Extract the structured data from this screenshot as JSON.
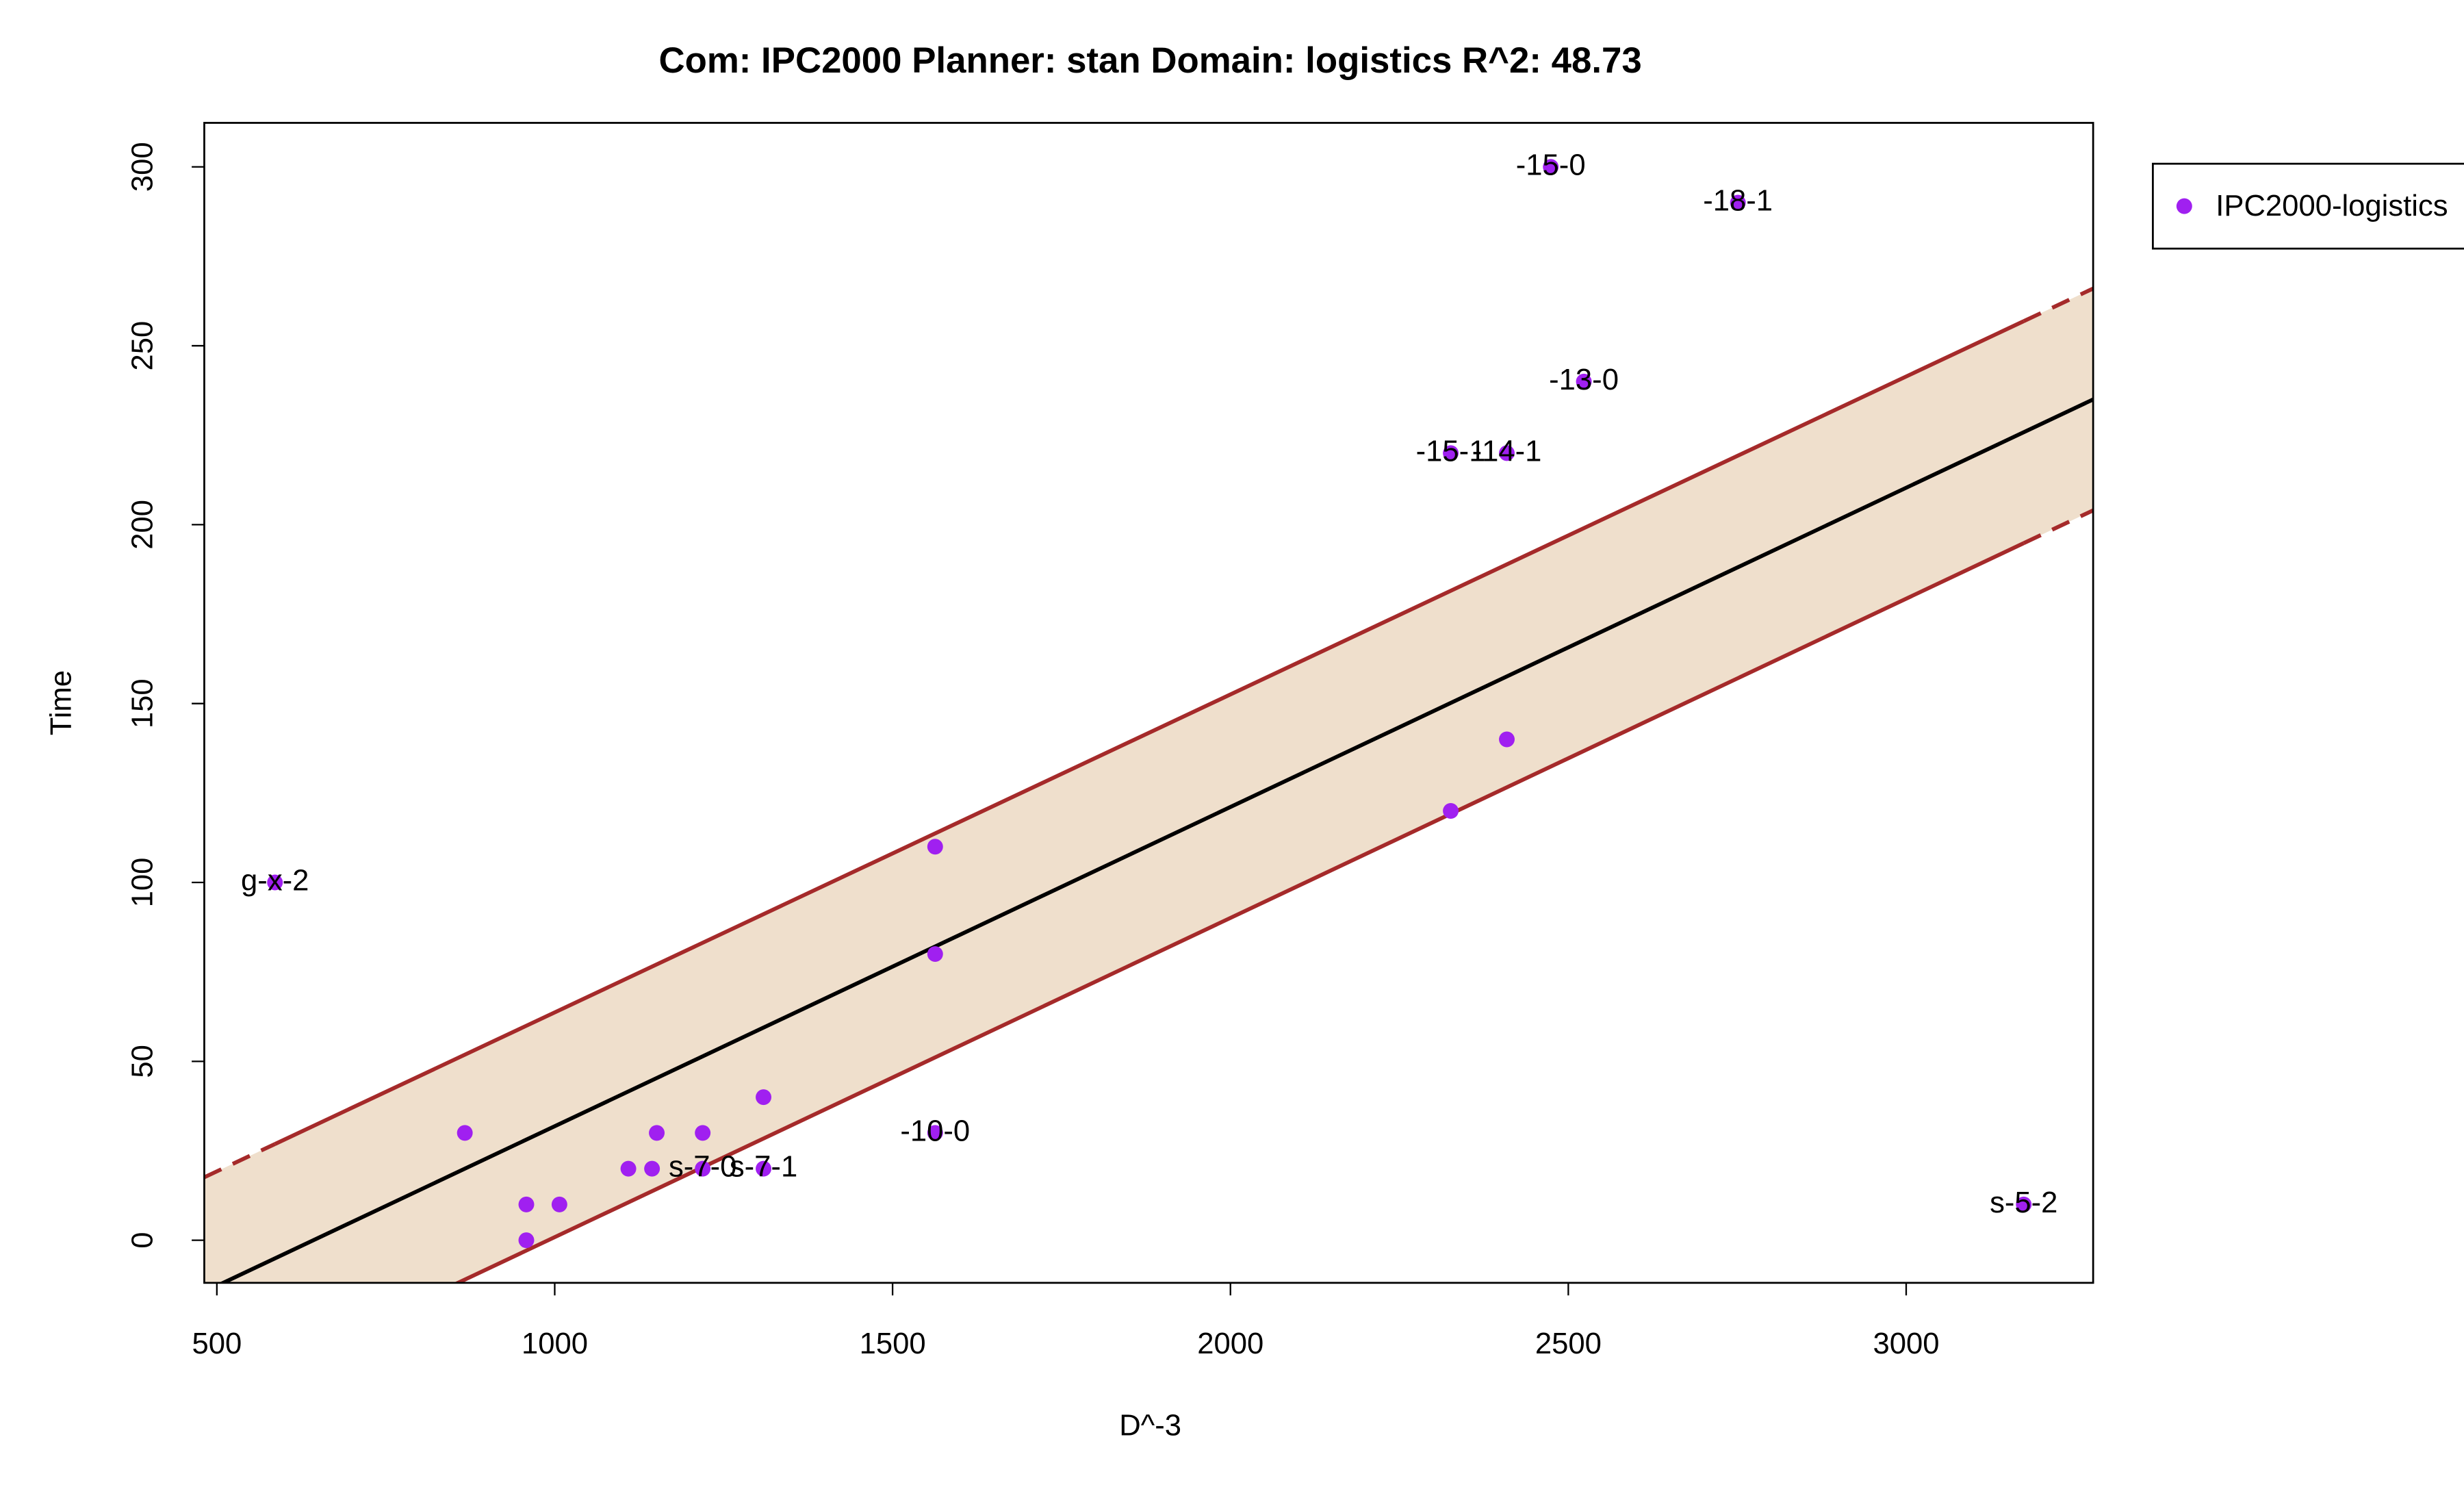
{
  "chart_data": {
    "type": "scatter",
    "title": "Com: IPC2000 Planner: stan Domain: logistics R^2: 48.73",
    "xlabel": "D^-3",
    "ylabel": "Time",
    "xlim": [
      481.4,
      3276.7
    ],
    "ylim": [
      -11.9,
      312.3
    ],
    "xticks": [
      500,
      1000,
      1500,
      2000,
      2500,
      3000
    ],
    "yticks": [
      0,
      50,
      100,
      150,
      200,
      250,
      300
    ],
    "series": [
      {
        "name": "IPC2000-logistics",
        "color": "#a020f0",
        "x": [
          586,
          867,
          958,
          958,
          1007,
          1109,
          1144,
          1151,
          1219,
          1219,
          1309,
          1309,
          1563,
          1563,
          1563,
          2326,
          2326,
          2409,
          2409,
          2474,
          2523,
          2751,
          3174
        ],
        "values": [
          100,
          30,
          10,
          0,
          10,
          20,
          20,
          30,
          30,
          20,
          40,
          20,
          110,
          80,
          30,
          120,
          220,
          140,
          220,
          300,
          240,
          290,
          10
        ],
        "labels": [
          "g-x-2",
          null,
          null,
          null,
          null,
          null,
          null,
          null,
          null,
          "s-7-0",
          null,
          "s-7-1",
          null,
          null,
          "-10-0",
          null,
          "-15-1",
          null,
          "-14-1",
          "-15-0",
          "-13-0",
          "-18-1",
          "s-5-2"
        ]
      }
    ],
    "fit": {
      "color": "#000000",
      "band_line_color": "#a52a2a",
      "band_color": "#efdfcc",
      "x": [
        481.4,
        3276.7
      ],
      "y": [
        -14.4,
        235
      ],
      "upper": [
        17.6,
        266
      ],
      "lower": [
        -45.4,
        204
      ]
    },
    "legend": "right"
  }
}
